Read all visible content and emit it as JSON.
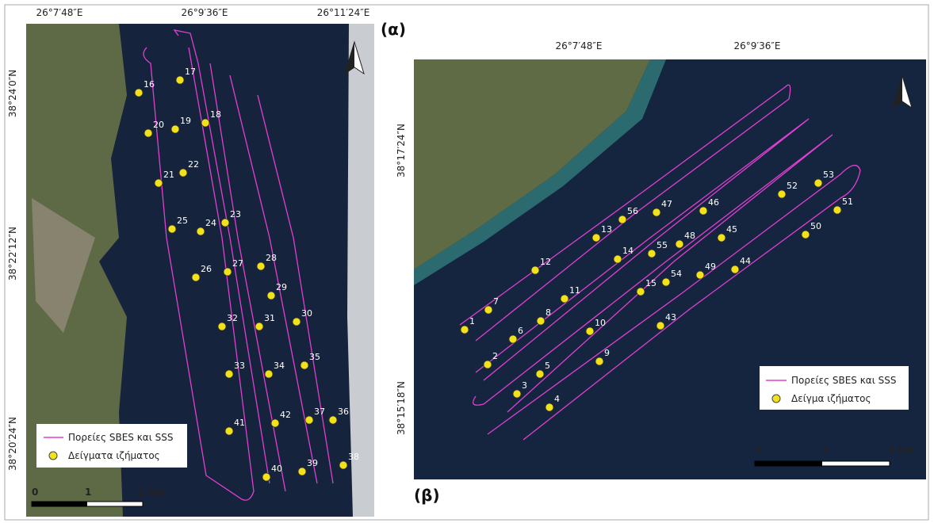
{
  "panels": [
    {
      "label": "(α)",
      "lon_labels": [
        "26°7′48″E",
        "26°9′36″E",
        "26°11′24″E"
      ],
      "lat_labels": [
        "38°24′0″N",
        "38°22′12″N",
        "38°20′24″N"
      ],
      "samples": [
        16,
        17,
        20,
        19,
        18,
        21,
        22,
        25,
        24,
        23,
        26,
        27,
        28,
        29,
        32,
        31,
        30,
        33,
        34,
        35,
        41,
        42,
        37,
        36,
        40,
        39,
        38
      ],
      "legend": {
        "track": "Πορείες SBES και SSS",
        "sample": "Δείγματα ιζήματος"
      },
      "scale": [
        "0",
        "1",
        "2 km"
      ]
    },
    {
      "label": "(β)",
      "lon_labels": [
        "26°7′48″E",
        "26°9′36″E"
      ],
      "lat_labels": [
        "38°17′24″N",
        "38°15′18″N"
      ],
      "samples": [
        1,
        7,
        2,
        6,
        8,
        11,
        12,
        3,
        5,
        4,
        10,
        9,
        13,
        56,
        47,
        46,
        14,
        55,
        48,
        45,
        15,
        54,
        49,
        44,
        43,
        52,
        53,
        51,
        50
      ],
      "legend": {
        "track": "Πορείες SBES και SSS",
        "sample": "Δείγμα ιζήματος"
      },
      "scale": [
        "0",
        "1",
        "2 km"
      ]
    }
  ]
}
